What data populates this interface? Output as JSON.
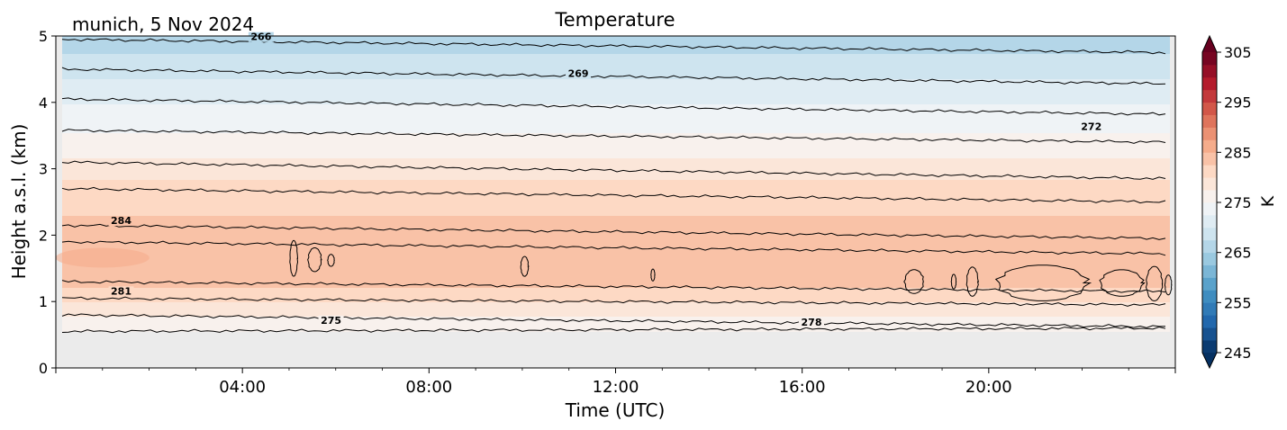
{
  "chart_data": {
    "type": "heatmap",
    "title": "Temperature",
    "subtitle": "munich, 5 Nov 2024",
    "xlabel": "Time (UTC)",
    "ylabel": "Height a.s.l. (km)",
    "x_range_hours": [
      0,
      24
    ],
    "ylim": [
      0,
      5
    ],
    "x_ticks": [
      {
        "hour": 4,
        "label": "04:00"
      },
      {
        "hour": 8,
        "label": "08:00"
      },
      {
        "hour": 12,
        "label": "12:00"
      },
      {
        "hour": 16,
        "label": "16:00"
      },
      {
        "hour": 20,
        "label": "20:00"
      }
    ],
    "y_ticks": [
      {
        "value": 0,
        "label": "0"
      },
      {
        "value": 1,
        "label": "1"
      },
      {
        "value": 2,
        "label": "2"
      },
      {
        "value": 3,
        "label": "3"
      },
      {
        "value": 4,
        "label": "4"
      },
      {
        "value": 5,
        "label": "5"
      }
    ],
    "colorbar": {
      "label": "K",
      "min": 245,
      "max": 305,
      "step": 2.5,
      "extend": "both",
      "colormap": "RdBu_r",
      "ticks": [
        {
          "value": 245,
          "label": "245"
        },
        {
          "value": 255,
          "label": "255"
        },
        {
          "value": 265,
          "label": "265"
        },
        {
          "value": 275,
          "label": "275"
        },
        {
          "value": 285,
          "label": "285"
        },
        {
          "value": 295,
          "label": "295"
        },
        {
          "value": 305,
          "label": "305"
        }
      ]
    },
    "data_min_height_km": 0.55,
    "missing_color": "#ebebeb",
    "temperature_profile": {
      "heights_km": [
        0.55,
        0.8,
        1.05,
        1.3,
        1.6,
        1.85,
        2.15,
        2.7,
        3.1,
        3.55,
        4.05,
        4.5,
        4.95
      ],
      "kelvin": [
        275,
        278,
        281,
        283.5,
        285,
        283.5,
        283,
        281,
        278,
        275,
        272,
        269,
        266
      ]
    },
    "contours": [
      {
        "level": 275,
        "label": "275",
        "start_km": 0.55,
        "end_km": 0.6
      },
      {
        "level": 278,
        "label": "278",
        "start_km": 0.8,
        "end_km": 0.62
      },
      {
        "level": 281,
        "label": "281",
        "start_km": 1.05,
        "end_km": 0.95
      },
      {
        "level": 282,
        "label": "",
        "start_km": 1.3,
        "end_km": 1.15
      },
      {
        "level": 283,
        "label": "",
        "start_km": 1.9,
        "end_km": 1.72
      },
      {
        "level": 284,
        "label": "284",
        "start_km": 2.15,
        "end_km": 1.95
      },
      {
        "level": 281,
        "label": "",
        "start_km": 2.7,
        "end_km": 2.5
      },
      {
        "level": 278,
        "label": "",
        "start_km": 3.1,
        "end_km": 2.85
      },
      {
        "level": 275,
        "label": "",
        "start_km": 3.58,
        "end_km": 3.4
      },
      {
        "level": 272,
        "label": "272",
        "start_km": 4.05,
        "end_km": 3.82
      },
      {
        "level": 269,
        "label": "269",
        "start_km": 4.5,
        "end_km": 4.28
      },
      {
        "level": 266,
        "label": "266",
        "start_km": 4.95,
        "end_km": 4.75
      }
    ],
    "contour_label_positions": [
      {
        "label": "275",
        "hour": 5.9,
        "km": 0.68
      },
      {
        "label": "278",
        "hour": 16.2,
        "km": 0.65
      },
      {
        "label": "281",
        "hour": 1.4,
        "km": 1.12
      },
      {
        "label": "284",
        "hour": 1.4,
        "km": 2.18
      },
      {
        "label": "272",
        "hour": 22.2,
        "km": 3.6
      },
      {
        "label": "269",
        "hour": 11.2,
        "km": 4.4
      },
      {
        "label": "266",
        "hour": 4.4,
        "km": 4.95
      }
    ],
    "closed_contours": [
      {
        "hour": 5.1,
        "km": 1.65,
        "rx_h": 0.08,
        "ry_km": 0.27
      },
      {
        "hour": 5.55,
        "km": 1.63,
        "rx_h": 0.14,
        "ry_km": 0.18
      },
      {
        "hour": 5.9,
        "km": 1.62,
        "rx_h": 0.07,
        "ry_km": 0.09
      },
      {
        "hour": 10.05,
        "km": 1.53,
        "rx_h": 0.08,
        "ry_km": 0.15
      },
      {
        "hour": 12.8,
        "km": 1.4,
        "rx_h": 0.04,
        "ry_km": 0.09
      },
      {
        "hour": 18.4,
        "km": 1.3,
        "rx_h": 0.2,
        "ry_km": 0.18
      },
      {
        "hour": 19.25,
        "km": 1.3,
        "rx_h": 0.05,
        "ry_km": 0.11
      },
      {
        "hour": 19.65,
        "km": 1.3,
        "rx_h": 0.12,
        "ry_km": 0.22
      },
      {
        "hour": 21.15,
        "km": 1.28,
        "rx_h": 0.95,
        "ry_km": 0.27
      },
      {
        "hour": 22.85,
        "km": 1.28,
        "rx_h": 0.45,
        "ry_km": 0.2
      },
      {
        "hour": 23.55,
        "km": 1.27,
        "rx_h": 0.17,
        "ry_km": 0.26
      },
      {
        "hour": 23.85,
        "km": 1.25,
        "rx_h": 0.07,
        "ry_km": 0.15
      }
    ]
  }
}
